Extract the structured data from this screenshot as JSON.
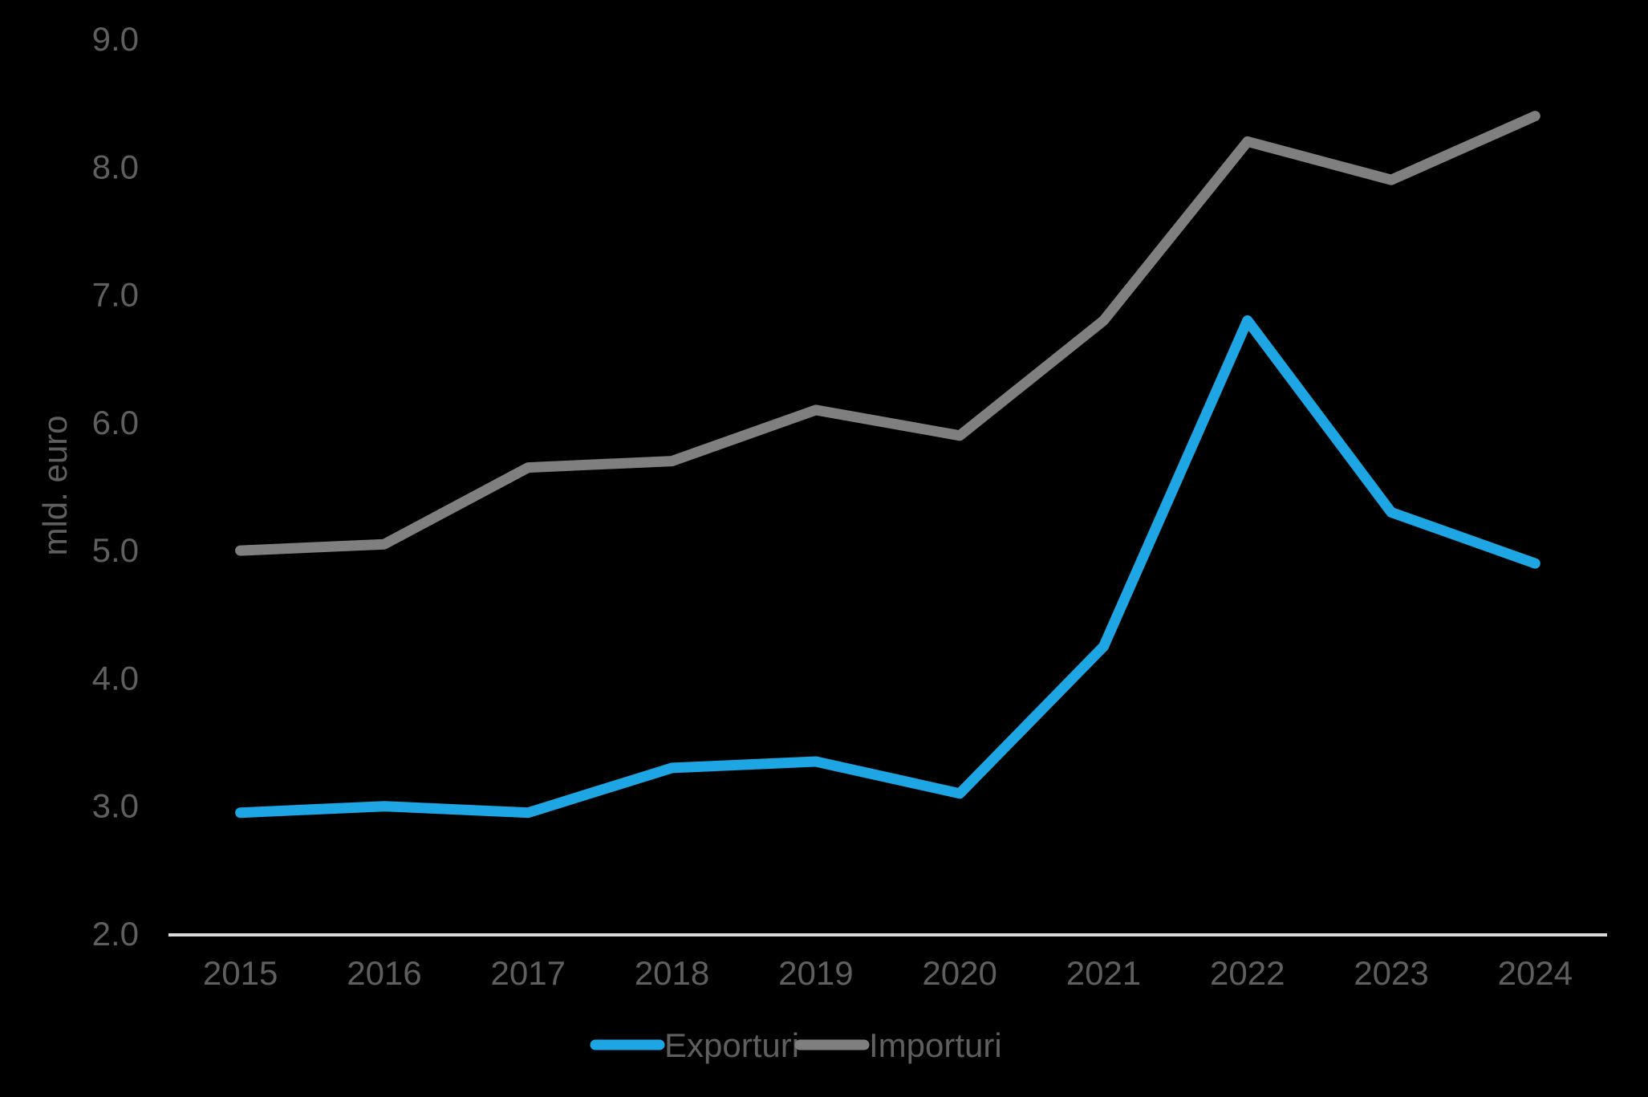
{
  "chart_data": {
    "type": "line",
    "x": [
      "2015",
      "2016",
      "2017",
      "2018",
      "2019",
      "2020",
      "2021",
      "2022",
      "2023",
      "2024"
    ],
    "series": [
      {
        "name": "Exporturi",
        "color": "#1da6e3",
        "values": [
          2.95,
          3.0,
          2.95,
          3.3,
          3.35,
          3.1,
          4.25,
          6.8,
          5.3,
          4.9
        ]
      },
      {
        "name": "Importuri",
        "color": "#7f7f7f",
        "values": [
          5.0,
          5.05,
          5.65,
          5.7,
          6.1,
          5.9,
          6.8,
          8.2,
          7.9,
          8.4
        ]
      }
    ],
    "title": "",
    "xlabel": "",
    "ylabel": "mld. euro",
    "ylim": [
      2.0,
      9.0
    ],
    "yticks": [
      2.0,
      3.0,
      4.0,
      5.0,
      6.0,
      7.0,
      8.0,
      9.0
    ],
    "ytick_decimals": 1,
    "grid": false,
    "legend_position": "bottom",
    "background_color": "#000000",
    "axis_color": "#d9d9d9",
    "text_color": "#5f5f5f"
  }
}
